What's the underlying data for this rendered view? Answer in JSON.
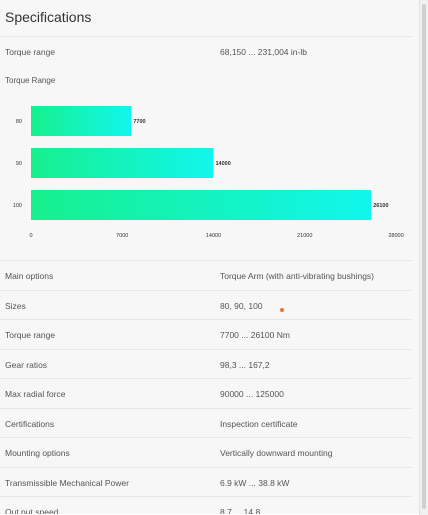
{
  "title": "Specifications",
  "top_row": {
    "label": "Torque range",
    "value": "68,150 ... 231,004 in-lb"
  },
  "chart_label": "Torque Range",
  "chart_data": {
    "type": "bar",
    "orientation": "horizontal",
    "categories": [
      "80",
      "90",
      "100"
    ],
    "values": [
      7700,
      14000,
      26100
    ],
    "data_labels": [
      "7700",
      "14000",
      "26100"
    ],
    "xlim": [
      0,
      28000
    ],
    "xticks": [
      "0",
      "7000",
      "14000",
      "21000",
      "28000"
    ],
    "title": "",
    "xlabel": "",
    "ylabel": "",
    "grid": false,
    "bar_gradient": [
      "#16f08d",
      "#11f6ee"
    ]
  },
  "rows": [
    {
      "label": "Main options",
      "value": "Torque Arm (with anti-vibrating bushings)"
    },
    {
      "label": "Sizes",
      "value": "80, 90, 100"
    },
    {
      "label": "Torque range",
      "value": "7700 ... 26100 Nm"
    },
    {
      "label": "Gear ratios",
      "value": "98,3 ... 167,2"
    },
    {
      "label": "Max radial force",
      "value": "90000 ... 125000"
    },
    {
      "label": "Certifications",
      "value": "Inspection certificate"
    },
    {
      "label": "Mounting options",
      "value": "Vertically downward mounting"
    },
    {
      "label": "Transmissible Mechanical Power",
      "value": "6.9 kW ... 38.8 kW"
    },
    {
      "label": "Out put speed",
      "value": "8.7 ... 14.8"
    }
  ]
}
